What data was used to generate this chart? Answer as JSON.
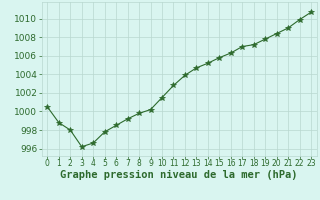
{
  "x": [
    0,
    1,
    2,
    3,
    4,
    5,
    6,
    7,
    8,
    9,
    10,
    11,
    12,
    13,
    14,
    15,
    16,
    17,
    18,
    19,
    20,
    21,
    22,
    23
  ],
  "y": [
    1000.5,
    998.8,
    998.0,
    996.2,
    996.6,
    997.8,
    998.5,
    999.2,
    999.8,
    1000.2,
    1001.5,
    1002.8,
    1003.9,
    1004.7,
    1005.2,
    1005.8,
    1006.3,
    1007.0,
    1007.2,
    1007.8,
    1008.4,
    1009.0,
    1009.9,
    1010.7
  ],
  "line_color": "#2d6a2d",
  "marker": "*",
  "marker_size": 4,
  "bg_color": "#d9f5f0",
  "grid_color": "#b8d8d0",
  "xlabel": "Graphe pression niveau de la mer (hPa)",
  "xlabel_fontsize": 7.5,
  "tick_color": "#2d6a2d",
  "ytick_fontsize": 6.5,
  "xtick_fontsize": 5.5,
  "ylim": [
    995.2,
    1011.8
  ],
  "yticks": [
    996,
    998,
    1000,
    1002,
    1004,
    1006,
    1008,
    1010
  ],
  "xlim": [
    -0.5,
    23.5
  ]
}
